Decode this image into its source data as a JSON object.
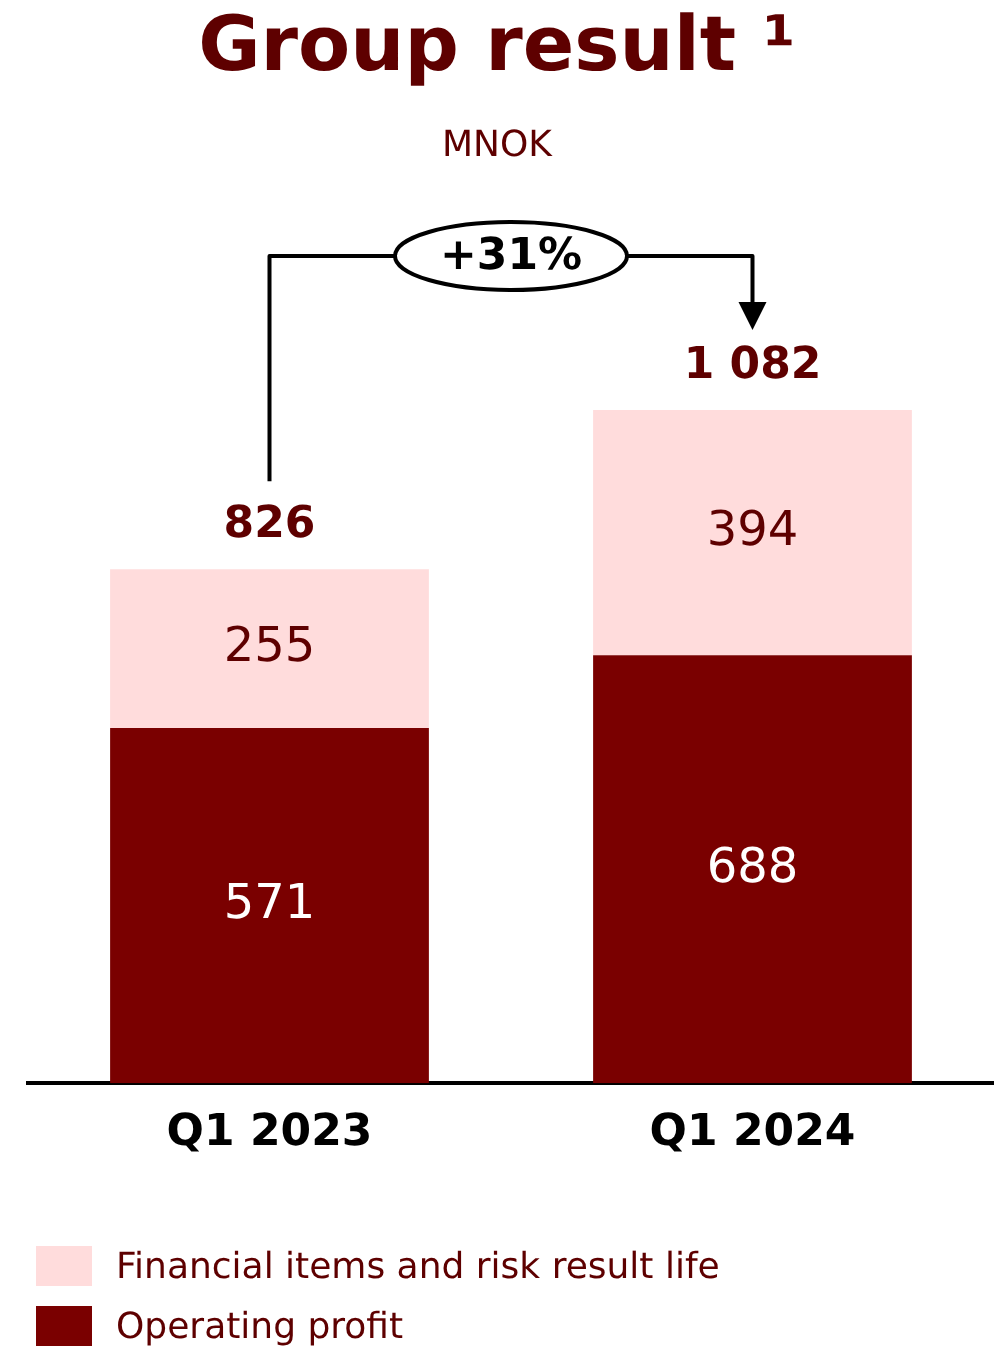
{
  "chart_data": {
    "type": "bar",
    "title": "Group result ¹",
    "subtitle": "MNOK",
    "stacked": true,
    "categories": [
      "Q1 2023",
      "Q1 2024"
    ],
    "series": [
      {
        "name": "Operating profit",
        "color": "#7a0000",
        "values": [
          571,
          688
        ]
      },
      {
        "name": "Financial items and risk result life",
        "color": "#ffdcdc",
        "values": [
          255,
          394
        ]
      }
    ],
    "totals": [
      "826",
      "1 082"
    ],
    "data_labels": true,
    "annotations": [
      "+31%"
    ],
    "legend": "bottom left",
    "grid": false
  }
}
